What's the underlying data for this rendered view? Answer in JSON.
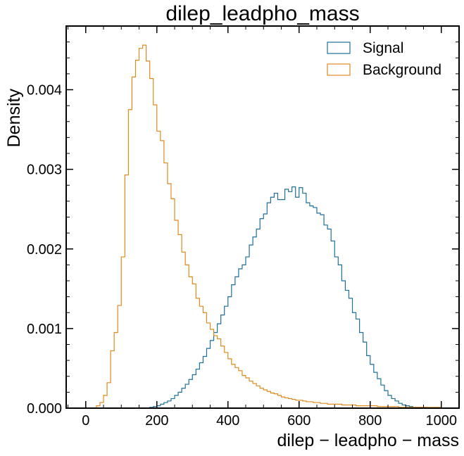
{
  "chart_data": {
    "type": "histogram",
    "title": "dilep_leadpho_mass",
    "xlabel": "dilep − leadpho − mass",
    "ylabel": "Density",
    "xlim": [
      -55,
      1050
    ],
    "ylim": [
      0,
      0.0048
    ],
    "xticks": [
      0,
      200,
      400,
      600,
      800,
      1000
    ],
    "xtick_labels": [
      "0",
      "200",
      "400",
      "600",
      "800",
      "1000"
    ],
    "yticks": [
      0,
      0.001,
      0.002,
      0.003,
      0.004
    ],
    "ytick_labels": [
      "0.000",
      "0.001",
      "0.002",
      "0.003",
      "0.004"
    ],
    "bin_start": 0,
    "bin_width": 10,
    "legend": {
      "loc": "top-right"
    },
    "series": [
      {
        "name": "Signal",
        "color": "#1f6f9a",
        "values": [
          0,
          0,
          0,
          0,
          0,
          0,
          0,
          0,
          0,
          0,
          0,
          0,
          0,
          0,
          0,
          0,
          0,
          0,
          1e-05,
          2e-05,
          3e-05,
          5e-05,
          7e-05,
          9e-05,
          0.00012,
          0.00016,
          0.0002,
          0.00025,
          0.0003,
          0.00036,
          0.00042,
          0.00049,
          0.00057,
          0.00065,
          0.00075,
          0.00085,
          0.00095,
          0.00106,
          0.00117,
          0.00128,
          0.0014,
          0.00155,
          0.00165,
          0.00175,
          0.0018,
          0.0019,
          0.00205,
          0.00215,
          0.00225,
          0.00238,
          0.00244,
          0.00258,
          0.00265,
          0.0027,
          0.00262,
          0.00262,
          0.00275,
          0.00272,
          0.00278,
          0.00265,
          0.00277,
          0.0027,
          0.00258,
          0.00254,
          0.00252,
          0.00245,
          0.00243,
          0.0023,
          0.00225,
          0.0021,
          0.0019,
          0.0018,
          0.0016,
          0.00148,
          0.00138,
          0.0012,
          0.00112,
          0.00095,
          0.00083,
          0.00066,
          0.00055,
          0.00045,
          0.00037,
          0.00029,
          0.00022,
          0.00016,
          0.00012,
          9e-05,
          6e-05,
          4e-05,
          3e-05,
          2e-05,
          1e-05,
          1e-05,
          1e-05,
          1e-05,
          0,
          0,
          0,
          0
        ]
      },
      {
        "name": "Background",
        "color": "#e08a1e",
        "values": [
          0,
          0,
          0,
          3e-05,
          7e-05,
          0.00016,
          0.00032,
          0.00072,
          0.00095,
          0.00129,
          0.0019,
          0.00293,
          0.00375,
          0.00416,
          0.00437,
          0.00452,
          0.00456,
          0.00436,
          0.00414,
          0.00381,
          0.00348,
          0.00336,
          0.00308,
          0.00282,
          0.00263,
          0.00236,
          0.00218,
          0.00196,
          0.0018,
          0.00165,
          0.00156,
          0.00138,
          0.00128,
          0.0012,
          0.00107,
          0.00099,
          0.00091,
          0.00087,
          0.00078,
          0.0007,
          0.00062,
          0.00055,
          0.00051,
          0.00047,
          0.00041,
          0.00038,
          0.00034,
          0.00031,
          0.00028,
          0.00025,
          0.00023,
          0.00021,
          0.00019,
          0.00018,
          0.00016,
          0.00014,
          0.00013,
          0.00012,
          0.00011,
          0.0001,
          0.0001,
          9e-05,
          8e-05,
          8e-05,
          7e-05,
          7e-05,
          6e-05,
          6e-05,
          5e-05,
          5e-05,
          5e-05,
          5e-05,
          4e-05,
          4e-05,
          4e-05,
          4e-05,
          3e-05,
          3e-05,
          3e-05,
          3e-05,
          3e-05,
          3e-05,
          2e-05,
          2e-05,
          2e-05,
          2e-05,
          2e-05,
          2e-05,
          1e-05,
          1e-05,
          1e-05,
          1e-05,
          1e-05,
          1e-05,
          1e-05,
          1e-05,
          1e-05,
          1e-05,
          1e-05,
          1e-05
        ]
      }
    ]
  }
}
